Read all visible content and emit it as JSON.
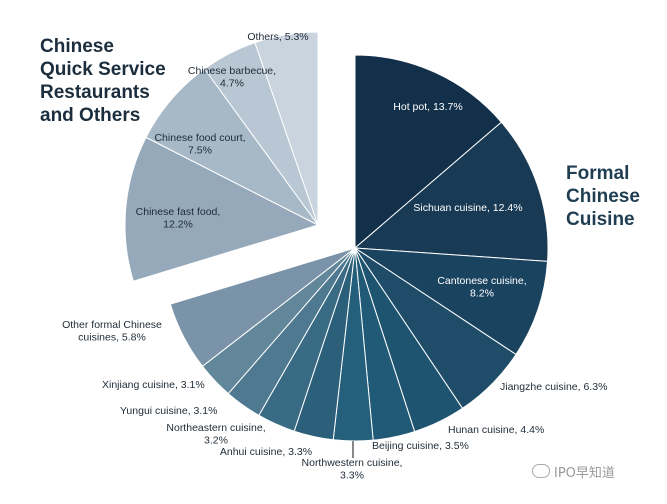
{
  "chart_data": {
    "type": "pie",
    "groups": [
      {
        "name_lines": [
          "Chinese",
          "Quick Service",
          "Restaurants",
          "and Others"
        ]
      },
      {
        "name_lines": [
          "Formal",
          "Chinese",
          "Cuisine"
        ]
      }
    ],
    "slices": [
      {
        "label": "Hot pot, 13.7%",
        "value": 13.7,
        "group": 1,
        "color": "#13304a"
      },
      {
        "label": "Sichuan cuisine, 12.4%",
        "value": 12.4,
        "group": 1,
        "color": "#183a54"
      },
      {
        "label": "Cantonese cuisine, 8.2%",
        "value": 8.2,
        "group": 1,
        "color": "#1a435f"
      },
      {
        "label": "Jiangzhe cuisine, 6.3%",
        "value": 6.3,
        "group": 1,
        "color": "#1f4c68"
      },
      {
        "label": "Hunan cuisine, 4.4%",
        "value": 4.4,
        "group": 1,
        "color": "#1f5470"
      },
      {
        "label": "Beijing cuisine, 3.5%",
        "value": 3.5,
        "group": 1,
        "color": "#215a77"
      },
      {
        "label": "Northwestern cuisine, 3.3%",
        "value": 3.3,
        "group": 1,
        "color": "#245f7c"
      },
      {
        "label": "Anhui cuisine, 3.3%",
        "value": 3.3,
        "group": 1,
        "color": "#2c5f7a"
      },
      {
        "label": "Northeastern cuisine, 3.2%",
        "value": 3.2,
        "group": 1,
        "color": "#3a6b85"
      },
      {
        "label": "Yungui cuisine, 3.1%",
        "value": 3.1,
        "group": 1,
        "color": "#4f7990"
      },
      {
        "label": "Xinjiang cuisine, 3.1%",
        "value": 3.1,
        "group": 1,
        "color": "#62869a"
      },
      {
        "label": "Other formal Chinese cuisines, 5.8%",
        "value": 5.8,
        "group": 1,
        "color": "#7a93a8"
      },
      {
        "label": "Chinese fast food, 12.2%",
        "value": 12.2,
        "group": 0,
        "color": "#96a9ba"
      },
      {
        "label": "Chinese food court, 7.5%",
        "value": 7.5,
        "group": 0,
        "color": "#a7b8c7"
      },
      {
        "label": "Chinese barbecue, 4.7%",
        "value": 4.7,
        "group": 0,
        "color": "#b8c7d3"
      },
      {
        "label": "Others, 5.3%",
        "value": 5.3,
        "group": 0,
        "color": "#c9d4de"
      }
    ]
  },
  "watermark": "IPO早知道"
}
